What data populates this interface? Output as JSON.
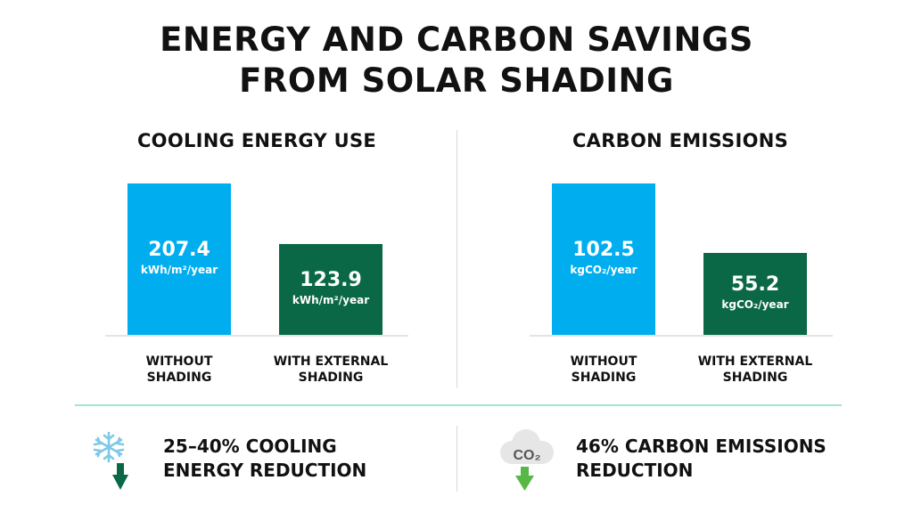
{
  "title": {
    "line1": "ENERGY AND CARBON SAVINGS",
    "line2": "FROM SOLAR SHADING"
  },
  "colors": {
    "without": "#00AEEF",
    "with": "#0B6847",
    "divider": "#9FE8C9",
    "icon_blue": "#7FC8E8",
    "icon_green": "#57B847"
  },
  "chart_data": [
    {
      "type": "bar",
      "title": "COOLING ENERGY USE",
      "unit": "kWh/m²/year",
      "categories": [
        [
          "WITHOUT",
          "SHADING"
        ],
        [
          "WITH EXTERNAL",
          "SHADING"
        ]
      ],
      "values": [
        207.4,
        123.9
      ],
      "labels": [
        "207.4",
        "123.9"
      ],
      "ylim": [
        0,
        207.4
      ]
    },
    {
      "type": "bar",
      "title": "CARBON EMISSIONS",
      "unit": "kgCO₂/year",
      "categories": [
        [
          "WITHOUT",
          "SHADING"
        ],
        [
          "WITH EXTERNAL",
          "SHADING"
        ]
      ],
      "values": [
        102.5,
        55.2
      ],
      "labels": [
        "102.5",
        "55.2"
      ],
      "ylim": [
        0,
        102.5
      ]
    }
  ],
  "summary": [
    {
      "icon": "snowflake-down-arrow-icon",
      "line1": "25–40% COOLING",
      "line2": "ENERGY REDUCTION"
    },
    {
      "icon": "co2-cloud-down-arrow-icon",
      "cloud_text": "CO₂",
      "line1": "46% CARBON EMISSIONS",
      "line2": "REDUCTION"
    }
  ]
}
